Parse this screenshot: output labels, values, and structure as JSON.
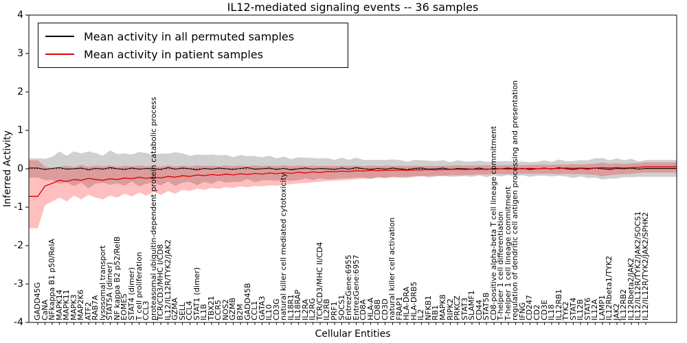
{
  "figure": {
    "title": "IL12-mediated signaling events -- 36 samples",
    "xlabel": "Cellular Entities",
    "ylabel": "Inferred Activity"
  },
  "legend": {
    "items": [
      {
        "label": "Mean activity in all permuted samples",
        "color": "#000000"
      },
      {
        "label": "Mean activity in patient samples",
        "color": "#dd0000"
      }
    ]
  },
  "chart_data": {
    "type": "line",
    "title": "IL12-mediated signaling events -- 36 samples",
    "xlabel": "Cellular Entities",
    "ylabel": "Inferred Activity",
    "ylim": [
      -4,
      4
    ],
    "yticks": [
      4,
      3,
      2,
      1,
      0,
      -1,
      -2,
      -3,
      -4
    ],
    "grid": false,
    "zero_line": true,
    "legend_position": "upper left",
    "categories": [
      "GADD45G",
      "CaNA",
      "NFkappa B1 p50/RelA",
      "MAPK14",
      "MAPK11",
      "MAPK3",
      "MAP2K6",
      "ATF2",
      "RAB7A",
      "lysosomal transport",
      "STAT5A (dimer)",
      "NF kappa B2 p52/RelB",
      "EOMES",
      "STAT4 (dimer)",
      "T cell proliferation",
      "CCL3",
      "proteasomal ubiquitin-dependent protein catabolic process",
      "TCR/CD3/MHC I/CD8",
      "IL12/IL12R/TYK2/JAK2",
      "GZMA",
      "SELL",
      "CCL4",
      "STAT1 (dimer)",
      "IL1B",
      "TBX21",
      "CCR5",
      "NOS2",
      "GZMB",
      "B2M",
      "GADD45B",
      "CCL1",
      "GATA3",
      "IL10",
      "CD3G",
      "natural killer cell mediated cytotoxicity",
      "IL18R1",
      "IL18RAP",
      "IL2RA",
      "IL2RG",
      "TCR/CD3/MHC II/CD4",
      "IL2RB",
      "PRF1",
      "SOCS1",
      "EntrezGene:6955",
      "EntrezGene:6957",
      "CD8A",
      "HLA-A",
      "CD8B",
      "CD3D",
      "natural killer cell activation",
      "FRAP1",
      "HLA-DRA",
      "HLA-DRB5",
      "IL2",
      "NFKB1",
      "RB1",
      "MAPK8",
      "RIPK2",
      "PRKCZ",
      "STAT3",
      "SLAMF1",
      "CD44",
      "STAT5B",
      "CD8-positive alpha-beta T cell lineage commitment",
      "T-helper 1 cell differentiation",
      "T-helper 1 cell lineage commitment",
      "regulation of dendritic cell antigen processing and presentation",
      "IFNG",
      "CD247",
      "CD2",
      "CD3E",
      "IL18",
      "IL12RB1",
      "TYK2",
      "STAT4",
      "IL12B",
      "STAT6",
      "IL12A",
      "LAMP1",
      "IL12Rbeta1/TYK2",
      "JAK2",
      "IL12RB2",
      "IL12Rbeta2/JAK2",
      "IL12/IL12R/TYK2/JAK2/SOCS1",
      "IL12/IL12R/TYK2/JAK2/SPHK2"
    ],
    "series": [
      {
        "name": "Mean activity in all permuted samples",
        "color": "#000000",
        "band_color": "rgba(120,120,120,0.35)",
        "values": [
          0.02,
          -0.02,
          0.01,
          0.03,
          -0.01,
          0.0,
          0.02,
          -0.03,
          0.01,
          -0.01,
          0.03,
          0.0,
          -0.02,
          0.02,
          -0.01,
          0.01,
          0.0,
          -0.02,
          0.03,
          -0.01,
          0.02,
          0.0,
          -0.03,
          0.01,
          -0.01,
          0.02,
          0.0,
          -0.02,
          0.01,
          0.03,
          -0.01,
          0.0,
          0.02,
          -0.02,
          0.01,
          -0.03,
          0.0,
          0.02,
          -0.01,
          0.01,
          0.0,
          -0.02,
          0.02,
          -0.01,
          0.03,
          0.0,
          -0.02,
          0.01,
          -0.01,
          0.02,
          0.0,
          -0.03,
          0.01,
          0.02,
          -0.01,
          0.0,
          0.02,
          -0.02,
          0.01,
          0.0,
          -0.01,
          0.02,
          -0.02,
          0.01,
          0.0,
          0.02,
          -0.01,
          0.01,
          -0.02,
          0.0,
          0.02,
          -0.01,
          0.03,
          0.0,
          -0.02,
          0.01,
          -0.01,
          0.02,
          0.0,
          -0.02,
          0.01,
          0.0,
          0.02,
          -0.01,
          0.01
        ],
        "band_halfwidth": [
          0.25,
          0.28,
          0.3,
          0.42,
          0.35,
          0.45,
          0.38,
          0.48,
          0.4,
          0.35,
          0.45,
          0.38,
          0.42,
          0.35,
          0.45,
          0.4,
          0.35,
          0.42,
          0.36,
          0.44,
          0.38,
          0.34,
          0.4,
          0.35,
          0.38,
          0.33,
          0.36,
          0.32,
          0.35,
          0.3,
          0.34,
          0.3,
          0.32,
          0.29,
          0.31,
          0.28,
          0.3,
          0.27,
          0.29,
          0.26,
          0.28,
          0.25,
          0.27,
          0.24,
          0.26,
          0.23,
          0.25,
          0.22,
          0.24,
          0.22,
          0.23,
          0.21,
          0.22,
          0.2,
          0.22,
          0.2,
          0.21,
          0.19,
          0.21,
          0.19,
          0.2,
          0.19,
          0.2,
          0.18,
          0.2,
          0.18,
          0.19,
          0.18,
          0.19,
          0.18,
          0.2,
          0.19,
          0.21,
          0.2,
          0.22,
          0.21,
          0.23,
          0.25,
          0.28,
          0.24,
          0.26,
          0.22,
          0.24,
          0.2,
          0.22
        ]
      },
      {
        "name": "Mean activity in patient samples",
        "color": "#dd0000",
        "band_color": "rgba(255,0,0,0.25)",
        "values": [
          -0.72,
          -0.45,
          -0.38,
          -0.3,
          -0.33,
          -0.28,
          -0.3,
          -0.25,
          -0.28,
          -0.3,
          -0.26,
          -0.28,
          -0.24,
          -0.26,
          -0.22,
          -0.25,
          -0.22,
          -0.24,
          -0.2,
          -0.22,
          -0.18,
          -0.2,
          -0.16,
          -0.18,
          -0.15,
          -0.17,
          -0.14,
          -0.16,
          -0.13,
          -0.15,
          -0.12,
          -0.14,
          -0.11,
          -0.13,
          -0.1,
          -0.12,
          -0.09,
          -0.11,
          -0.08,
          -0.1,
          -0.07,
          -0.08,
          -0.06,
          -0.07,
          -0.05,
          -0.06,
          -0.04,
          -0.05,
          -0.04,
          -0.04,
          -0.03,
          -0.04,
          -0.03,
          -0.03,
          -0.02,
          -0.03,
          -0.02,
          -0.02,
          -0.01,
          -0.02,
          -0.01,
          -0.02,
          -0.01,
          -0.01,
          0.0,
          -0.01,
          0.0,
          0.0,
          0.01,
          0.0,
          0.01,
          0.0,
          0.01,
          0.02,
          0.01,
          0.02,
          0.01,
          0.02,
          0.03,
          0.02,
          0.03,
          0.02,
          0.03,
          0.04,
          0.05
        ],
        "band_lower": [
          -1.55,
          -0.95,
          -0.85,
          -0.75,
          -0.85,
          -0.7,
          -0.8,
          -0.68,
          -0.75,
          -0.8,
          -0.7,
          -0.75,
          -0.65,
          -0.72,
          -0.62,
          -0.7,
          -0.6,
          -0.68,
          -0.58,
          -0.65,
          -0.55,
          -0.58,
          -0.52,
          -0.55,
          -0.5,
          -0.52,
          -0.48,
          -0.5,
          -0.46,
          -0.48,
          -0.45,
          -0.46,
          -0.43,
          -0.44,
          -0.41,
          -0.4,
          -0.38,
          -0.37,
          -0.35,
          -0.34,
          -0.32,
          -0.31,
          -0.3,
          -0.29,
          -0.27,
          -0.26,
          -0.25,
          -0.24,
          -0.23,
          -0.23,
          -0.22,
          -0.21,
          -0.2,
          -0.2,
          -0.19,
          -0.18,
          -0.18,
          -0.17,
          -0.17,
          -0.16,
          -0.16,
          -0.15,
          -0.15,
          -0.14,
          -0.14,
          -0.14,
          -0.13,
          -0.13,
          -0.13,
          -0.13,
          -0.13,
          -0.13,
          -0.14,
          -0.13,
          -0.14,
          -0.14,
          -0.15,
          -0.16,
          -0.2,
          -0.17,
          -0.15,
          -0.14,
          -0.13,
          -0.11,
          -0.1
        ],
        "band_upper": [
          0.22,
          0.05,
          0.02,
          0.05,
          0.08,
          0.04,
          0.1,
          0.05,
          0.08,
          0.06,
          0.09,
          0.05,
          0.08,
          0.06,
          0.09,
          0.06,
          0.08,
          0.05,
          0.09,
          0.06,
          0.08,
          0.06,
          0.09,
          0.07,
          0.08,
          0.06,
          0.09,
          0.07,
          0.08,
          0.07,
          0.09,
          0.07,
          0.08,
          0.07,
          0.09,
          0.07,
          0.08,
          0.07,
          0.08,
          0.07,
          0.08,
          0.07,
          0.08,
          0.07,
          0.08,
          0.07,
          0.08,
          0.07,
          0.08,
          0.07,
          0.08,
          0.07,
          0.08,
          0.07,
          0.08,
          0.07,
          0.08,
          0.08,
          0.09,
          0.08,
          0.09,
          0.08,
          0.09,
          0.08,
          0.09,
          0.09,
          0.1,
          0.09,
          0.1,
          0.1,
          0.11,
          0.1,
          0.11,
          0.11,
          0.12,
          0.11,
          0.12,
          0.13,
          0.16,
          0.13,
          0.14,
          0.13,
          0.14,
          0.15,
          0.17
        ]
      }
    ]
  }
}
